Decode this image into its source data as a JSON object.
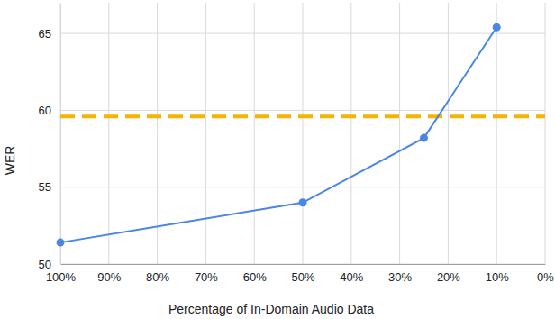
{
  "chart_data": {
    "type": "line",
    "x_label": "Percentage of In-Domain Audio Data",
    "y_label": "WER",
    "x": [
      100,
      50,
      25,
      10
    ],
    "series": [
      {
        "color": "#4a86e8",
        "marker": "circle",
        "line_style": "solid",
        "values": [
          51.4,
          54.0,
          58.2,
          65.4
        ]
      }
    ],
    "reference_line": {
      "value": 59.6,
      "color": "#f4b400",
      "line_style": "dashed"
    },
    "xlim": [
      100,
      0
    ],
    "xticks": [
      {
        "value": 100,
        "label": "100%"
      },
      {
        "value": 90,
        "label": "90%"
      },
      {
        "value": 80,
        "label": "80%"
      },
      {
        "value": 70,
        "label": "70%"
      },
      {
        "value": 60,
        "label": "60%"
      },
      {
        "value": 50,
        "label": "50%"
      },
      {
        "value": 40,
        "label": "40%"
      },
      {
        "value": 30,
        "label": "30%"
      },
      {
        "value": 20,
        "label": "20%"
      },
      {
        "value": 10,
        "label": "10%"
      },
      {
        "value": 0,
        "label": "0%"
      }
    ],
    "ylim": [
      50,
      67
    ],
    "yticks": [
      50,
      55,
      60,
      65
    ],
    "grid": true
  }
}
